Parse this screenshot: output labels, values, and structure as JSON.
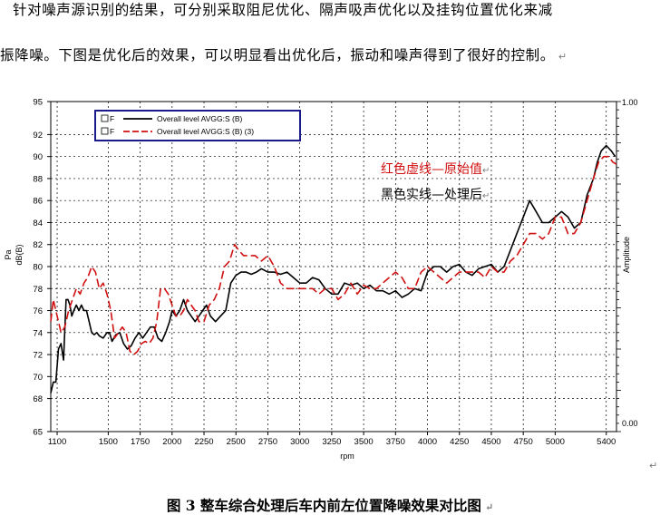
{
  "document": {
    "paragraph_line1": "针对噪声源识别的结果，可分别采取阻尼优化、隔声吸声优化以及挂钩位置优化来减",
    "paragraph_line2": "振降噪。下图是优化后的效果，可以明显看出优化后，振动和噪声得到了很好的控制。",
    "paragraph_mark": "↵",
    "caption": "图 3 整车综合处理后车内前左位置降噪效果对比图",
    "caption_mark": "↵",
    "stray_mark": "↵"
  },
  "chart_data": {
    "type": "line",
    "xlabel": "rpm",
    "ylabel_outer": "Pa",
    "ylabel_inner": "dB(B)",
    "ylabel_right": "Amplitude",
    "xlim": [
      1050,
      5480
    ],
    "ylim": [
      65,
      95
    ],
    "x_ticks": [
      1100,
      1500,
      1750,
      2000,
      2250,
      2500,
      2750,
      3000,
      3250,
      3500,
      3750,
      4000,
      4250,
      4500,
      4750,
      5000,
      5400
    ],
    "y_ticks": [
      65,
      68,
      70,
      72,
      74,
      76,
      78,
      80,
      82,
      84,
      86,
      88,
      90,
      92,
      95
    ],
    "right_ticks": [
      "1.00",
      "0.00"
    ],
    "grid": true,
    "legend_position": "top-left",
    "legend": [
      {
        "marker": "F",
        "label": "Overall level AVGG:S (B)",
        "color": "#000000",
        "dash": "solid"
      },
      {
        "marker": "F",
        "label": "Overall level AVGG:S (B) (3)",
        "color": "#d01010",
        "dash": "dashed"
      }
    ],
    "annotations": [
      {
        "text": "红色虚线—原始值",
        "color": "#d01010",
        "mark": "↵"
      },
      {
        "text": "黑色实线—处理后",
        "color": "#000000",
        "mark": "↵"
      }
    ],
    "series": [
      {
        "name": "Overall level AVGG:S (B)",
        "color": "#000000",
        "dash": "solid",
        "x": [
          1050,
          1070,
          1090,
          1110,
          1130,
          1150,
          1170,
          1185,
          1200,
          1215,
          1230,
          1250,
          1270,
          1290,
          1310,
          1330,
          1350,
          1370,
          1390,
          1410,
          1430,
          1460,
          1490,
          1510,
          1530,
          1560,
          1590,
          1620,
          1650,
          1680,
          1710,
          1740,
          1770,
          1800,
          1830,
          1860,
          1890,
          1920,
          1950,
          1980,
          2000,
          2030,
          2060,
          2090,
          2120,
          2150,
          2180,
          2210,
          2240,
          2270,
          2300,
          2340,
          2380,
          2420,
          2460,
          2500,
          2540,
          2580,
          2620,
          2660,
          2700,
          2750,
          2800,
          2850,
          2900,
          2950,
          3000,
          3050,
          3100,
          3150,
          3200,
          3250,
          3300,
          3350,
          3400,
          3450,
          3500,
          3550,
          3600,
          3650,
          3700,
          3750,
          3800,
          3850,
          3900,
          3950,
          4000,
          4050,
          4100,
          4150,
          4200,
          4250,
          4300,
          4350,
          4400,
          4450,
          4500,
          4550,
          4600,
          4650,
          4700,
          4750,
          4800,
          4850,
          4900,
          4950,
          5000,
          5050,
          5100,
          5150,
          5200,
          5250,
          5300,
          5330,
          5360,
          5400,
          5440,
          5470
        ],
        "y": [
          68.5,
          69.5,
          69.5,
          72.5,
          73,
          71.5,
          77,
          77,
          76.5,
          75.5,
          76,
          76.5,
          76,
          76.5,
          76,
          76,
          75,
          74,
          73.8,
          74,
          73.7,
          73.5,
          74,
          74,
          73.2,
          73.8,
          74,
          73,
          72.5,
          72.8,
          73.5,
          74,
          73.5,
          74,
          74.5,
          74.5,
          73.5,
          73.2,
          74,
          75,
          76,
          75.5,
          76,
          77,
          76,
          75.5,
          75,
          75.5,
          76,
          76.5,
          75.5,
          75,
          75.5,
          76,
          78.5,
          79.2,
          79.5,
          79.5,
          79.3,
          79.5,
          79.8,
          79.5,
          79.5,
          79.3,
          79.5,
          79,
          78.5,
          78.5,
          79,
          78.8,
          78,
          77.5,
          77.5,
          78.5,
          78.3,
          78.5,
          78,
          78.3,
          77.8,
          77.8,
          77.5,
          77.8,
          77.2,
          77.5,
          78,
          77.8,
          79.5,
          80,
          80,
          79.5,
          80,
          80.2,
          79.5,
          79.2,
          79.8,
          80,
          80.2,
          79.5,
          80,
          81.5,
          83,
          84.5,
          86,
          85,
          84,
          84,
          84.5,
          85,
          84.5,
          83.5,
          84,
          86.5,
          88,
          89.5,
          90.5,
          91,
          90.5,
          90
        ]
      },
      {
        "name": "Overall level AVGG:S (B) (3)",
        "color": "#d01010",
        "dash": "dashed",
        "x": [
          1050,
          1070,
          1090,
          1110,
          1130,
          1160,
          1190,
          1220,
          1250,
          1280,
          1310,
          1340,
          1370,
          1400,
          1430,
          1460,
          1490,
          1520,
          1550,
          1580,
          1610,
          1640,
          1670,
          1700,
          1730,
          1760,
          1790,
          1820,
          1850,
          1880,
          1910,
          1940,
          1970,
          2000,
          2030,
          2060,
          2090,
          2120,
          2150,
          2180,
          2210,
          2250,
          2290,
          2330,
          2370,
          2410,
          2450,
          2490,
          2520,
          2560,
          2600,
          2650,
          2700,
          2750,
          2800,
          2850,
          2900,
          2950,
          3000,
          3050,
          3100,
          3150,
          3200,
          3250,
          3300,
          3350,
          3400,
          3450,
          3500,
          3550,
          3600,
          3650,
          3700,
          3750,
          3800,
          3850,
          3900,
          3950,
          4000,
          4050,
          4100,
          4150,
          4200,
          4250,
          4300,
          4350,
          4400,
          4450,
          4500,
          4550,
          4600,
          4650,
          4700,
          4750,
          4800,
          4850,
          4900,
          4950,
          5000,
          5050,
          5100,
          5150,
          5200,
          5250,
          5300,
          5340,
          5380,
          5420,
          5450,
          5480
        ],
        "y": [
          75,
          77,
          76,
          75,
          74,
          74.5,
          76,
          77,
          78,
          77.5,
          78.5,
          79,
          80,
          79.5,
          78,
          78.5,
          77.5,
          76,
          73.5,
          74,
          74.5,
          74,
          72.3,
          72,
          72.3,
          73,
          73.2,
          73,
          73.5,
          75,
          78,
          78,
          77.5,
          76.5,
          75.5,
          75.5,
          76,
          77,
          76.5,
          76,
          75,
          75,
          76.5,
          77,
          78,
          80,
          80.5,
          82,
          81.5,
          81,
          81,
          81,
          80.5,
          81,
          80,
          78.5,
          78,
          78,
          78,
          78,
          78,
          77.5,
          78,
          78,
          77,
          77.5,
          78.5,
          77.5,
          78.3,
          78,
          78,
          78.5,
          79,
          79.5,
          79,
          78,
          78,
          79.5,
          80,
          79.5,
          79,
          78.5,
          79,
          79.5,
          79.5,
          79.5,
          79.5,
          79,
          80,
          79.5,
          79.5,
          80.5,
          81,
          82,
          83,
          83,
          82.5,
          83,
          84.5,
          84.5,
          83,
          83,
          84,
          86,
          88,
          89.5,
          90,
          90,
          89.5,
          89.3
        ]
      }
    ]
  }
}
